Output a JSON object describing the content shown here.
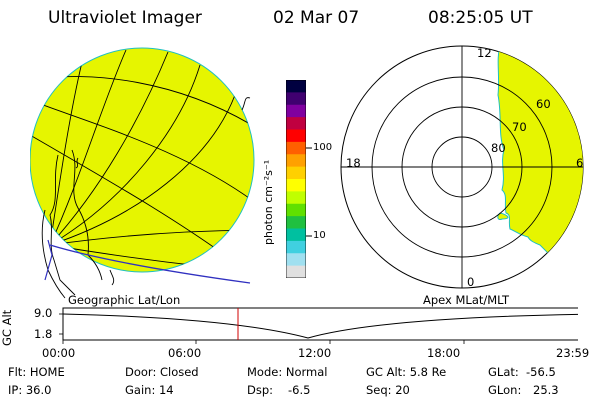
{
  "header": {
    "instrument": "Ultraviolet Imager",
    "date": "02 Mar 07",
    "time": "08:25:05 UT"
  },
  "colorbar": {
    "unit": "photon cm⁻²s⁻¹",
    "ticks": [
      "100",
      "10"
    ],
    "colors": [
      "#000040",
      "#400070",
      "#8000a0",
      "#c00040",
      "#ff0000",
      "#ff6000",
      "#ffa000",
      "#ffd000",
      "#ffff00",
      "#c0ff00",
      "#60e000",
      "#20c040",
      "#00c0a0",
      "#40d0e0",
      "#a0e0f0",
      "#e0e0e0"
    ]
  },
  "polar": {
    "labels_mlt": {
      "top": "12",
      "right": "6",
      "bottom": "0",
      "left": "18"
    },
    "labels_lat": [
      "60",
      "70",
      "80"
    ]
  },
  "map_labels": {
    "geographic": "Geographic Lat/Lon",
    "apex": "Apex MLat/MLT"
  },
  "altplot": {
    "ylabel": "GC Alt",
    "yticks": [
      "9.0",
      "1.8"
    ],
    "xticks": [
      "00:00",
      "06:00",
      "12:00",
      "18:00",
      "23:59"
    ]
  },
  "info": {
    "flt": "Flt: HOME",
    "ip": "IP: 36.0",
    "door": "Door: Closed",
    "gain": "Gain: 14",
    "mode": "Mode: Normal",
    "dsp_label": "Dsp:",
    "dsp_value": "-6.5",
    "gcalt": "GC Alt: 5.8 Re",
    "seq": "Seq: 20",
    "glat_label": "GLat:",
    "glat_value": "-56.5",
    "glon_label": "GLon:",
    "glon_value": "25.3"
  }
}
